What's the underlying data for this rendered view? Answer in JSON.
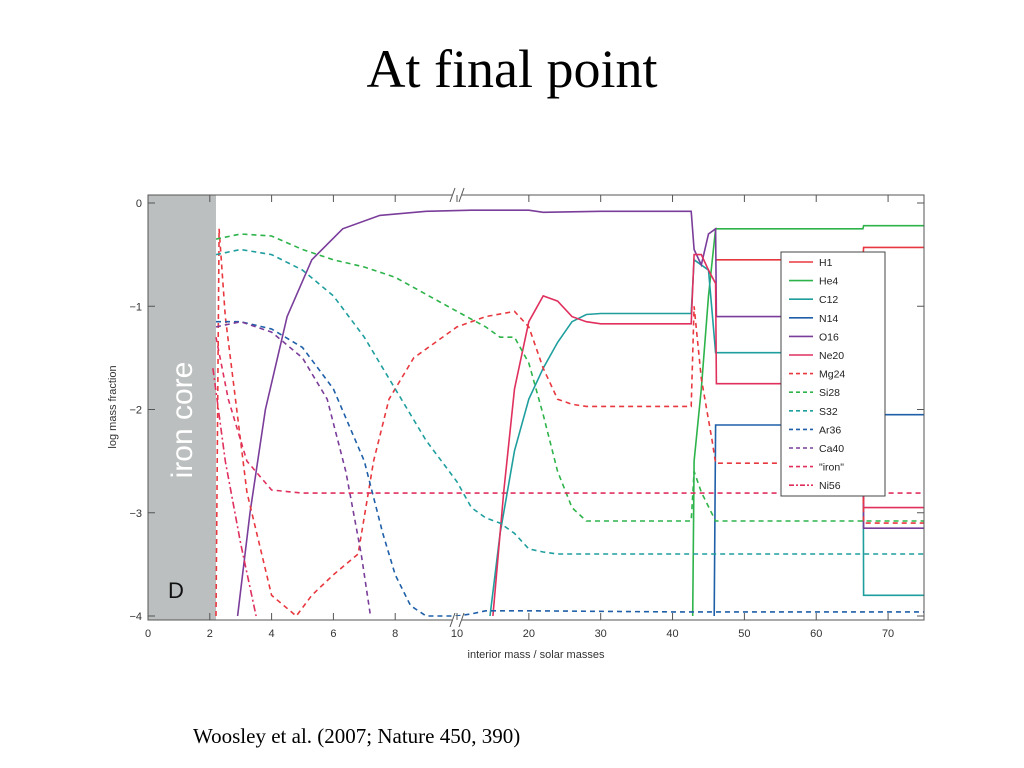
{
  "slide": {
    "title": "At final point",
    "citation": "Woosley et al. (2007; Nature 450, 390)"
  },
  "chart_data": {
    "type": "line",
    "xlabel": "interior mass / solar masses",
    "ylabel": "log mass fraction",
    "xlim": [
      0,
      75
    ],
    "ylim": [
      -4,
      0
    ],
    "xscale": "broken-linear",
    "xscale_break": {
      "at": 10,
      "left_range": [
        0,
        10
      ],
      "right_range": [
        10,
        75
      ]
    },
    "x_ticks": [
      0,
      2,
      4,
      6,
      8,
      10,
      20,
      30,
      40,
      50,
      60,
      70
    ],
    "y_ticks": [
      0,
      -1,
      -2,
      -3,
      -4
    ],
    "y_tick_labels": [
      "0",
      "−1",
      "−2",
      "−3",
      "−4"
    ],
    "grid": false,
    "legend_position": "right",
    "annotations": {
      "core_label": "iron core",
      "core_extent": [
        0,
        2.2
      ],
      "panel_label": "D"
    },
    "series": [
      {
        "name": "H1",
        "color": "#e8383f",
        "dash": "solid",
        "points": [
          [
            46,
            -0.55
          ],
          [
            66.5,
            -0.55
          ],
          [
            66.6,
            -0.43
          ],
          [
            75,
            -0.43
          ]
        ]
      },
      {
        "name": "He4",
        "color": "#2db34a",
        "dash": "solid",
        "points": [
          [
            42.8,
            -4
          ],
          [
            43,
            -2.5
          ],
          [
            44,
            -1.8
          ],
          [
            45,
            -0.9
          ],
          [
            46,
            -0.25
          ],
          [
            66.5,
            -0.25
          ],
          [
            66.6,
            -0.22
          ],
          [
            75,
            -0.22
          ]
        ]
      },
      {
        "name": "C12",
        "color": "#1f9e9e",
        "dash": "solid",
        "points": [
          [
            14.6,
            -4
          ],
          [
            16,
            -3.2
          ],
          [
            18,
            -2.4
          ],
          [
            20,
            -1.9
          ],
          [
            22,
            -1.6
          ],
          [
            24,
            -1.35
          ],
          [
            26,
            -1.15
          ],
          [
            28,
            -1.08
          ],
          [
            30,
            -1.07
          ],
          [
            42.6,
            -1.07
          ],
          [
            43,
            -0.55
          ],
          [
            45,
            -0.65
          ],
          [
            46,
            -1.45
          ],
          [
            66.5,
            -1.45
          ],
          [
            66.6,
            -3.8
          ],
          [
            75,
            -3.8
          ]
        ]
      },
      {
        "name": "N14",
        "color": "#1f5fa8",
        "dash": "solid",
        "points": [
          [
            45.8,
            -4
          ],
          [
            46,
            -2.15
          ],
          [
            66.5,
            -2.15
          ],
          [
            66.6,
            -2.05
          ],
          [
            75,
            -2.05
          ]
        ]
      },
      {
        "name": "O16",
        "color": "#7a3d9a",
        "dash": "solid",
        "points": [
          [
            2.9,
            -4
          ],
          [
            3.3,
            -3.0
          ],
          [
            3.8,
            -2.0
          ],
          [
            4.5,
            -1.1
          ],
          [
            5.3,
            -0.55
          ],
          [
            6.3,
            -0.25
          ],
          [
            7.5,
            -0.12
          ],
          [
            9,
            -0.08
          ],
          [
            12,
            -0.07
          ],
          [
            20,
            -0.07
          ],
          [
            22,
            -0.09
          ],
          [
            30,
            -0.08
          ],
          [
            42.6,
            -0.08
          ],
          [
            43,
            -0.45
          ],
          [
            44,
            -0.6
          ],
          [
            45,
            -0.3
          ],
          [
            46,
            -0.25
          ],
          [
            46.1,
            -1.1
          ],
          [
            66.5,
            -1.1
          ],
          [
            66.6,
            -3.15
          ],
          [
            75,
            -3.15
          ]
        ]
      },
      {
        "name": "Ne20",
        "color": "#e0305e",
        "dash": "solid",
        "points": [
          [
            15,
            -4
          ],
          [
            16.5,
            -2.8
          ],
          [
            18,
            -1.8
          ],
          [
            20,
            -1.15
          ],
          [
            22,
            -0.9
          ],
          [
            24,
            -0.95
          ],
          [
            26,
            -1.1
          ],
          [
            28,
            -1.15
          ],
          [
            30,
            -1.17
          ],
          [
            42.6,
            -1.17
          ],
          [
            43,
            -0.5
          ],
          [
            44,
            -0.5
          ],
          [
            45,
            -0.65
          ],
          [
            46,
            -0.78
          ],
          [
            46.1,
            -1.75
          ],
          [
            66.5,
            -1.75
          ],
          [
            66.6,
            -2.95
          ],
          [
            75,
            -2.95
          ]
        ]
      },
      {
        "name": "Mg24",
        "color": "#e8383f",
        "dash": "dash",
        "points": [
          [
            2.2,
            -4
          ],
          [
            2.3,
            -0.25
          ],
          [
            2.5,
            -1.1
          ],
          [
            3.2,
            -2.8
          ],
          [
            4,
            -3.8
          ],
          [
            4.8,
            -4
          ],
          [
            5.3,
            -3.8
          ],
          [
            6,
            -3.6
          ],
          [
            6.8,
            -3.4
          ],
          [
            7.3,
            -2.5
          ],
          [
            7.8,
            -1.9
          ],
          [
            8.6,
            -1.5
          ],
          [
            10,
            -1.2
          ],
          [
            14,
            -1.1
          ],
          [
            18,
            -1.05
          ],
          [
            20,
            -1.2
          ],
          [
            22,
            -1.6
          ],
          [
            24,
            -1.9
          ],
          [
            26,
            -1.95
          ],
          [
            28,
            -1.97
          ],
          [
            42.6,
            -1.97
          ],
          [
            43,
            -1.0
          ],
          [
            44,
            -1.7
          ],
          [
            45.5,
            -2.3
          ],
          [
            46,
            -2.52
          ],
          [
            66.5,
            -2.52
          ],
          [
            66.6,
            -3.1
          ],
          [
            75,
            -3.1
          ]
        ]
      },
      {
        "name": "Si28",
        "color": "#2db34a",
        "dash": "dash",
        "points": [
          [
            2.2,
            -0.35
          ],
          [
            3,
            -0.3
          ],
          [
            4,
            -0.32
          ],
          [
            5,
            -0.45
          ],
          [
            6,
            -0.55
          ],
          [
            7,
            -0.62
          ],
          [
            8,
            -0.72
          ],
          [
            10,
            -1.05
          ],
          [
            14,
            -1.2
          ],
          [
            16,
            -1.3
          ],
          [
            18,
            -1.3
          ],
          [
            20,
            -1.55
          ],
          [
            22,
            -2.05
          ],
          [
            24,
            -2.6
          ],
          [
            26,
            -2.95
          ],
          [
            28,
            -3.08
          ],
          [
            42.6,
            -3.08
          ],
          [
            43,
            -2.6
          ],
          [
            44,
            -2.8
          ],
          [
            46,
            -3.08
          ],
          [
            66.5,
            -3.08
          ],
          [
            66.6,
            -3.08
          ],
          [
            75,
            -3.08
          ]
        ]
      },
      {
        "name": "S32",
        "color": "#1f9e9e",
        "dash": "dash",
        "points": [
          [
            2.2,
            -0.5
          ],
          [
            3,
            -0.45
          ],
          [
            4,
            -0.5
          ],
          [
            5,
            -0.65
          ],
          [
            6,
            -0.9
          ],
          [
            7,
            -1.3
          ],
          [
            8,
            -1.8
          ],
          [
            9,
            -2.3
          ],
          [
            10,
            -2.7
          ],
          [
            12,
            -2.95
          ],
          [
            14,
            -3.05
          ],
          [
            16,
            -3.1
          ],
          [
            18,
            -3.2
          ],
          [
            20,
            -3.35
          ],
          [
            22,
            -3.38
          ],
          [
            24,
            -3.4
          ],
          [
            75,
            -3.4
          ]
        ]
      },
      {
        "name": "Ar36",
        "color": "#1f5fa8",
        "dash": "dash",
        "points": [
          [
            2.2,
            -1.15
          ],
          [
            3,
            -1.15
          ],
          [
            4,
            -1.22
          ],
          [
            5,
            -1.4
          ],
          [
            6,
            -1.8
          ],
          [
            7,
            -2.5
          ],
          [
            7.6,
            -3.2
          ],
          [
            8,
            -3.6
          ],
          [
            8.5,
            -3.9
          ],
          [
            9,
            -4
          ],
          [
            10,
            -4
          ],
          [
            12,
            -3.98
          ],
          [
            14,
            -3.95
          ],
          [
            20,
            -3.95
          ],
          [
            40,
            -3.96
          ],
          [
            75,
            -3.96
          ]
        ]
      },
      {
        "name": "Ca40",
        "color": "#7a3d9a",
        "dash": "dash",
        "points": [
          [
            2.2,
            -1.2
          ],
          [
            3,
            -1.15
          ],
          [
            4,
            -1.25
          ],
          [
            5,
            -1.5
          ],
          [
            5.8,
            -1.9
          ],
          [
            6.4,
            -2.6
          ],
          [
            6.9,
            -3.4
          ],
          [
            7.2,
            -4
          ]
        ]
      },
      {
        "name": "\"iron\"",
        "color": "#e0305e",
        "dash": "dash",
        "points": [
          [
            2.2,
            -1.3
          ],
          [
            2.6,
            -1.9
          ],
          [
            3.2,
            -2.5
          ],
          [
            4,
            -2.78
          ],
          [
            5,
            -2.81
          ],
          [
            10,
            -2.81
          ],
          [
            20,
            -2.81
          ],
          [
            40,
            -2.81
          ],
          [
            75,
            -2.81
          ]
        ]
      },
      {
        "name": "Ni56",
        "color": "#e0305e",
        "dash": "dashdot",
        "points": [
          [
            2.1,
            -1.6
          ],
          [
            2.5,
            -2.5
          ],
          [
            3,
            -3.3
          ],
          [
            3.5,
            -4
          ]
        ]
      }
    ]
  }
}
